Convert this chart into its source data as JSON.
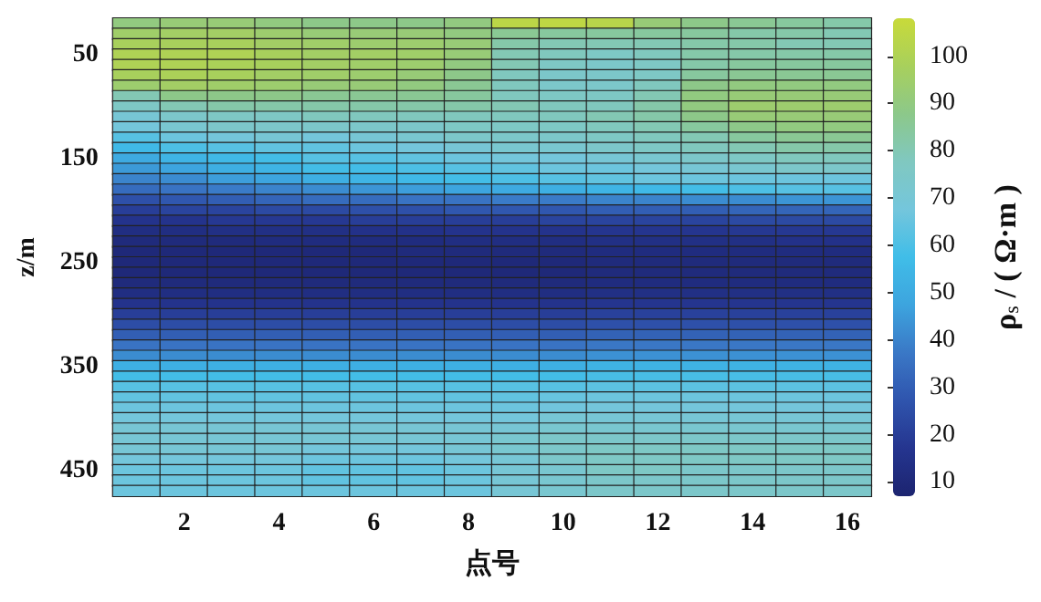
{
  "chart_data": {
    "type": "heatmap",
    "xlabel": "点号",
    "ylabel": "z/m",
    "clabel": "ρ$_{s}$ / ( Ω·m )",
    "categories": [
      null,
      "2",
      null,
      "4",
      null,
      "6",
      null,
      "8",
      null,
      "10",
      null,
      "12",
      null,
      "14",
      null,
      "16"
    ],
    "y_categories": [
      null,
      null,
      null,
      "50",
      null,
      null,
      null,
      null,
      null,
      null,
      null,
      null,
      null,
      "150",
      null,
      null,
      null,
      null,
      null,
      null,
      null,
      null,
      null,
      "250",
      null,
      null,
      null,
      null,
      null,
      null,
      null,
      null,
      null,
      "350",
      null,
      null,
      null,
      null,
      null,
      null,
      null,
      null,
      null,
      "450",
      null,
      null
    ],
    "clim": [
      7,
      108
    ],
    "cticks": [
      10,
      20,
      30,
      40,
      50,
      60,
      70,
      80,
      90,
      100
    ],
    "cells": [
      [
        90,
        92,
        92,
        90,
        88,
        88,
        88,
        90,
        104,
        105,
        103,
        92,
        88,
        86,
        84,
        82
      ],
      [
        95,
        96,
        96,
        94,
        92,
        92,
        92,
        90,
        86,
        84,
        84,
        84,
        84,
        82,
        82,
        80
      ],
      [
        98,
        98,
        98,
        96,
        95,
        94,
        94,
        92,
        82,
        80,
        80,
        80,
        82,
        82,
        80,
        80
      ],
      [
        100,
        100,
        100,
        98,
        96,
        96,
        95,
        92,
        80,
        78,
        76,
        78,
        82,
        82,
        82,
        82
      ],
      [
        100,
        100,
        99,
        98,
        96,
        95,
        94,
        90,
        80,
        76,
        74,
        76,
        82,
        84,
        84,
        84
      ],
      [
        98,
        99,
        98,
        96,
        95,
        94,
        92,
        88,
        78,
        74,
        74,
        76,
        84,
        86,
        86,
        86
      ],
      [
        94,
        96,
        95,
        94,
        92,
        92,
        90,
        86,
        78,
        74,
        74,
        78,
        88,
        90,
        90,
        90
      ],
      [
        80,
        88,
        88,
        88,
        86,
        86,
        86,
        84,
        78,
        76,
        76,
        80,
        90,
        92,
        92,
        92
      ],
      [
        76,
        80,
        82,
        82,
        82,
        82,
        82,
        82,
        80,
        78,
        78,
        82,
        90,
        94,
        94,
        94
      ],
      [
        70,
        74,
        76,
        76,
        78,
        78,
        78,
        78,
        78,
        78,
        80,
        82,
        88,
        92,
        92,
        92
      ],
      [
        68,
        72,
        74,
        74,
        74,
        74,
        74,
        76,
        76,
        76,
        78,
        80,
        84,
        88,
        90,
        90
      ],
      [
        62,
        66,
        68,
        70,
        68,
        70,
        72,
        74,
        74,
        74,
        76,
        78,
        80,
        84,
        86,
        86
      ],
      [
        56,
        60,
        62,
        64,
        64,
        66,
        68,
        70,
        72,
        72,
        74,
        76,
        78,
        80,
        82,
        82
      ],
      [
        50,
        54,
        56,
        58,
        62,
        62,
        64,
        66,
        68,
        68,
        70,
        72,
        74,
        76,
        78,
        78
      ],
      [
        45,
        48,
        52,
        54,
        58,
        58,
        60,
        62,
        64,
        66,
        66,
        68,
        70,
        72,
        74,
        74
      ],
      [
        40,
        42,
        46,
        48,
        52,
        54,
        56,
        58,
        60,
        62,
        64,
        66,
        66,
        66,
        66,
        66
      ],
      [
        34,
        36,
        38,
        40,
        42,
        44,
        46,
        48,
        50,
        52,
        54,
        56,
        58,
        60,
        62,
        62
      ],
      [
        26,
        28,
        30,
        32,
        34,
        34,
        36,
        36,
        38,
        38,
        40,
        40,
        42,
        42,
        44,
        44
      ],
      [
        20,
        22,
        22,
        24,
        24,
        26,
        26,
        28,
        28,
        28,
        30,
        30,
        30,
        32,
        32,
        32
      ],
      [
        16,
        16,
        18,
        18,
        18,
        20,
        20,
        20,
        20,
        22,
        22,
        22,
        22,
        24,
        24,
        24
      ],
      [
        13,
        13,
        14,
        14,
        14,
        15,
        15,
        16,
        16,
        16,
        17,
        17,
        17,
        18,
        18,
        18
      ],
      [
        11,
        11,
        11,
        12,
        12,
        12,
        12,
        13,
        13,
        13,
        14,
        14,
        14,
        14,
        15,
        15
      ],
      [
        10,
        10,
        10,
        10,
        10,
        10,
        11,
        11,
        11,
        11,
        12,
        12,
        12,
        12,
        12,
        12
      ],
      [
        10,
        10,
        10,
        10,
        10,
        10,
        10,
        10,
        10,
        10,
        11,
        11,
        11,
        11,
        11,
        11
      ],
      [
        10,
        10,
        10,
        10,
        10,
        10,
        10,
        10,
        10,
        10,
        11,
        11,
        11,
        11,
        11,
        11
      ],
      [
        11,
        11,
        11,
        11,
        11,
        11,
        11,
        11,
        11,
        11,
        12,
        12,
        12,
        12,
        12,
        12
      ],
      [
        13,
        13,
        13,
        13,
        13,
        13,
        13,
        13,
        13,
        13,
        14,
        14,
        14,
        14,
        14,
        14
      ],
      [
        16,
        16,
        16,
        16,
        16,
        16,
        16,
        16,
        16,
        16,
        17,
        17,
        17,
        17,
        17,
        17
      ],
      [
        20,
        20,
        20,
        20,
        20,
        20,
        20,
        20,
        20,
        20,
        21,
        21,
        21,
        21,
        21,
        21
      ],
      [
        25,
        25,
        25,
        25,
        25,
        25,
        25,
        25,
        25,
        25,
        26,
        26,
        26,
        26,
        26,
        26
      ],
      [
        30,
        30,
        30,
        30,
        30,
        30,
        30,
        30,
        30,
        30,
        31,
        31,
        31,
        31,
        31,
        31
      ],
      [
        36,
        36,
        36,
        36,
        36,
        36,
        36,
        36,
        36,
        36,
        37,
        37,
        37,
        37,
        37,
        37
      ],
      [
        42,
        42,
        42,
        42,
        42,
        42,
        42,
        42,
        42,
        42,
        43,
        43,
        43,
        43,
        43,
        43
      ],
      [
        52,
        52,
        52,
        52,
        52,
        52,
        52,
        52,
        52,
        52,
        53,
        53,
        53,
        53,
        53,
        53
      ],
      [
        58,
        58,
        58,
        58,
        58,
        58,
        58,
        58,
        58,
        58,
        59,
        59,
        59,
        59,
        59,
        59
      ],
      [
        62,
        62,
        62,
        62,
        62,
        62,
        62,
        62,
        62,
        62,
        63,
        63,
        63,
        63,
        63,
        63
      ],
      [
        64,
        64,
        64,
        64,
        64,
        64,
        64,
        64,
        64,
        65,
        66,
        66,
        66,
        66,
        66,
        66
      ],
      [
        66,
        66,
        66,
        66,
        66,
        66,
        66,
        66,
        66,
        67,
        68,
        68,
        68,
        68,
        68,
        68
      ],
      [
        68,
        68,
        68,
        68,
        68,
        68,
        68,
        68,
        68,
        70,
        70,
        70,
        70,
        70,
        70,
        70
      ],
      [
        70,
        70,
        70,
        70,
        70,
        70,
        70,
        70,
        70,
        72,
        72,
        72,
        72,
        72,
        72,
        72
      ],
      [
        70,
        70,
        70,
        70,
        70,
        70,
        70,
        70,
        72,
        74,
        74,
        74,
        74,
        74,
        74,
        74
      ],
      [
        70,
        70,
        70,
        70,
        68,
        68,
        68,
        70,
        72,
        74,
        76,
        76,
        76,
        76,
        76,
        76
      ],
      [
        68,
        68,
        68,
        68,
        66,
        66,
        66,
        68,
        70,
        74,
        76,
        76,
        76,
        76,
        76,
        76
      ],
      [
        66,
        66,
        66,
        66,
        64,
        64,
        64,
        66,
        70,
        72,
        76,
        76,
        74,
        74,
        74,
        74
      ],
      [
        66,
        66,
        66,
        66,
        64,
        64,
        64,
        66,
        70,
        72,
        74,
        74,
        74,
        74,
        74,
        74
      ],
      [
        66,
        66,
        66,
        66,
        66,
        66,
        66,
        66,
        70,
        72,
        74,
        74,
        74,
        74,
        74,
        74
      ]
    ]
  }
}
